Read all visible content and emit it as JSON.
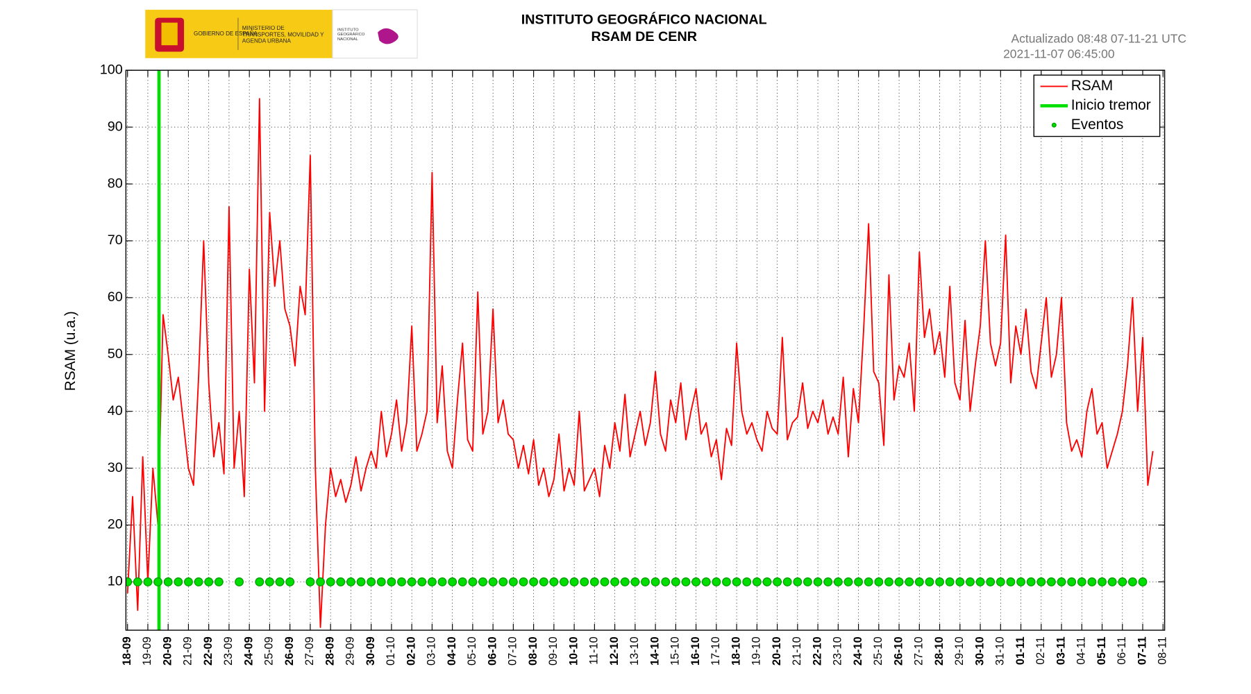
{
  "logo": {
    "gobierno": "GOBIERNO DE ESPAÑA",
    "ministerio": "MINISTERIO DE TRANSPORTES, MOVILIDAD Y AGENDA URBANA",
    "instituto": "INSTITUTO GEOGRÁFICO NACIONAL"
  },
  "chart_data": {
    "type": "line",
    "title": "INSTITUTO GEOGRÁFICO NACIONAL",
    "subtitle": "RSAM DE CENR",
    "updated": "Actualizado 08:48 07-11-21 UTC",
    "timestamp": "2021-11-07 06:45:00",
    "y_label": "RSAM (u.a.)",
    "xlim": [
      -0.08,
      51.08
    ],
    "ylim": [
      1.5,
      100
    ],
    "yticks": [
      10,
      20,
      30,
      40,
      50,
      60,
      70,
      80,
      90,
      100
    ],
    "xticks": [
      {
        "value": 0,
        "label": "18-09"
      },
      {
        "value": 1,
        "label": "19-09"
      },
      {
        "value": 2,
        "label": "20-09"
      },
      {
        "value": 3,
        "label": "21-09"
      },
      {
        "value": 4,
        "label": "22-09"
      },
      {
        "value": 5,
        "label": "23-09"
      },
      {
        "value": 6,
        "label": "24-09"
      },
      {
        "value": 7,
        "label": "25-09"
      },
      {
        "value": 8,
        "label": "26-09"
      },
      {
        "value": 9,
        "label": "27-09"
      },
      {
        "value": 10,
        "label": "28-09"
      },
      {
        "value": 11,
        "label": "29-09"
      },
      {
        "value": 12,
        "label": "30-09"
      },
      {
        "value": 13,
        "label": "01-10"
      },
      {
        "value": 14,
        "label": "02-10"
      },
      {
        "value": 15,
        "label": "03-10"
      },
      {
        "value": 16,
        "label": "04-10"
      },
      {
        "value": 17,
        "label": "05-10"
      },
      {
        "value": 18,
        "label": "06-10"
      },
      {
        "value": 19,
        "label": "07-10"
      },
      {
        "value": 20,
        "label": "08-10"
      },
      {
        "value": 21,
        "label": "09-10"
      },
      {
        "value": 22,
        "label": "10-10"
      },
      {
        "value": 23,
        "label": "11-10"
      },
      {
        "value": 24,
        "label": "12-10"
      },
      {
        "value": 25,
        "label": "13-10"
      },
      {
        "value": 26,
        "label": "14-10"
      },
      {
        "value": 27,
        "label": "15-10"
      },
      {
        "value": 28,
        "label": "16-10"
      },
      {
        "value": 29,
        "label": "17-10"
      },
      {
        "value": 30,
        "label": "18-10"
      },
      {
        "value": 31,
        "label": "19-10"
      },
      {
        "value": 32,
        "label": "20-10"
      },
      {
        "value": 33,
        "label": "21-10"
      },
      {
        "value": 34,
        "label": "22-10"
      },
      {
        "value": 35,
        "label": "23-10"
      },
      {
        "value": 36,
        "label": "24-10"
      },
      {
        "value": 37,
        "label": "25-10"
      },
      {
        "value": 38,
        "label": "26-10"
      },
      {
        "value": 39,
        "label": "27-10"
      },
      {
        "value": 40,
        "label": "28-10"
      },
      {
        "value": 41,
        "label": "29-10"
      },
      {
        "value": 42,
        "label": "30-10"
      },
      {
        "value": 43,
        "label": "31-10"
      },
      {
        "value": 44,
        "label": "01-11"
      },
      {
        "value": 45,
        "label": "02-11"
      },
      {
        "value": 46,
        "label": "03-11"
      },
      {
        "value": 47,
        "label": "04-11"
      },
      {
        "value": 48,
        "label": "05-11"
      },
      {
        "value": 49,
        "label": "06-11"
      },
      {
        "value": 50,
        "label": "07-11"
      },
      {
        "value": 51,
        "label": "08-11"
      }
    ],
    "grid": true,
    "legend": "upper right",
    "series": [
      {
        "name": "RSAM",
        "type": "line",
        "color": "#ff0000",
        "x": [
          0,
          0.25,
          0.5,
          0.75,
          1,
          1.25,
          1.5,
          1.75,
          2,
          2.25,
          2.5,
          2.75,
          3,
          3.25,
          3.5,
          3.75,
          4,
          4.25,
          4.5,
          4.75,
          5,
          5.25,
          5.5,
          5.75,
          6,
          6.25,
          6.5,
          6.75,
          7,
          7.25,
          7.5,
          7.75,
          8,
          8.25,
          8.5,
          8.75,
          9,
          9.25,
          9.5,
          9.75,
          10,
          10.25,
          10.5,
          10.75,
          11,
          11.25,
          11.5,
          11.75,
          12,
          12.25,
          12.5,
          12.75,
          13,
          13.25,
          13.5,
          13.75,
          14,
          14.25,
          14.5,
          14.75,
          15,
          15.25,
          15.5,
          15.75,
          16,
          16.25,
          16.5,
          16.75,
          17,
          17.25,
          17.5,
          17.75,
          18,
          18.25,
          18.5,
          18.75,
          19,
          19.25,
          19.5,
          19.75,
          20,
          20.25,
          20.5,
          20.75,
          21,
          21.25,
          21.5,
          21.75,
          22,
          22.25,
          22.5,
          22.75,
          23,
          23.25,
          23.5,
          23.75,
          24,
          24.25,
          24.5,
          24.75,
          25,
          25.25,
          25.5,
          25.75,
          26,
          26.25,
          26.5,
          26.75,
          27,
          27.25,
          27.5,
          27.75,
          28,
          28.25,
          28.5,
          28.75,
          29,
          29.25,
          29.5,
          29.75,
          30,
          30.25,
          30.5,
          30.75,
          31,
          31.25,
          31.5,
          31.75,
          32,
          32.25,
          32.5,
          32.75,
          33,
          33.25,
          33.5,
          33.75,
          34,
          34.25,
          34.5,
          34.75,
          35,
          35.25,
          35.5,
          35.75,
          36,
          36.25,
          36.5,
          36.75,
          37,
          37.25,
          37.5,
          37.75,
          38,
          38.25,
          38.5,
          38.75,
          39,
          39.25,
          39.5,
          39.75,
          40,
          40.25,
          40.5,
          40.75,
          41,
          41.25,
          41.5,
          41.75,
          42,
          42.25,
          42.5,
          42.75,
          43,
          43.25,
          43.5,
          43.75,
          44,
          44.25,
          44.5,
          44.75,
          45,
          45.25,
          45.5,
          45.75,
          46,
          46.25,
          46.5,
          46.75,
          47,
          47.25,
          47.5,
          47.75,
          48,
          48.25,
          48.5,
          48.75,
          49,
          49.25,
          49.5,
          49.75,
          50,
          50.25,
          50.5
        ],
        "values": [
          8,
          25,
          5,
          32,
          10,
          30,
          20,
          57,
          50,
          42,
          46,
          38,
          30,
          27,
          46,
          70,
          45,
          32,
          38,
          29,
          76,
          30,
          40,
          25,
          65,
          45,
          95,
          40,
          75,
          62,
          70,
          58,
          55,
          48,
          62,
          57,
          85,
          30,
          2,
          20,
          30,
          25,
          28,
          24,
          27,
          32,
          26,
          30,
          33,
          30,
          40,
          32,
          36,
          42,
          33,
          38,
          55,
          33,
          36,
          40,
          82,
          38,
          48,
          33,
          30,
          42,
          52,
          35,
          33,
          61,
          36,
          40,
          58,
          38,
          42,
          36,
          35,
          30,
          34,
          29,
          35,
          27,
          30,
          25,
          28,
          36,
          26,
          30,
          27,
          40,
          26,
          28,
          30,
          25,
          34,
          30,
          38,
          33,
          43,
          32,
          36,
          40,
          34,
          38,
          47,
          36,
          33,
          42,
          38,
          45,
          35,
          40,
          44,
          36,
          38,
          32,
          35,
          28,
          37,
          34,
          52,
          40,
          36,
          38,
          35,
          33,
          40,
          37,
          36,
          53,
          35,
          38,
          39,
          45,
          37,
          40,
          38,
          42,
          36,
          39,
          36,
          46,
          32,
          44,
          38,
          54,
          73,
          47,
          45,
          34,
          64,
          42,
          48,
          46,
          52,
          40,
          68,
          53,
          58,
          50,
          54,
          46,
          62,
          45,
          42,
          56,
          40,
          48,
          55,
          70,
          52,
          48,
          52,
          71,
          45,
          55,
          50,
          58,
          47,
          44,
          52,
          60,
          46,
          50,
          60,
          38,
          33,
          35,
          32,
          40,
          44,
          36,
          38,
          30,
          33,
          36,
          40,
          48,
          60,
          40,
          53,
          27,
          33
        ]
      },
      {
        "name": "Inicio tremor",
        "type": "vline",
        "color": "#00e000",
        "x": [
          1.55
        ]
      },
      {
        "name": "Eventos",
        "type": "scatter",
        "color": "#00dd00",
        "x": [
          0,
          0.5,
          1,
          1.5,
          2,
          2.5,
          3,
          3.5,
          4,
          4.5,
          5.5,
          6.5,
          7,
          7.5,
          8,
          9,
          9.5,
          10,
          10.5,
          11,
          11.5,
          12,
          12.5,
          13,
          13.5,
          14,
          14.5,
          15,
          15.5,
          16,
          16.5,
          17,
          17.5,
          18,
          18.5,
          19,
          19.5,
          20,
          20.5,
          21,
          21.5,
          22,
          22.5,
          23,
          23.5,
          24,
          24.5,
          25,
          25.5,
          26,
          26.5,
          27,
          27.5,
          28,
          28.5,
          29,
          29.5,
          30,
          30.5,
          31,
          31.5,
          32,
          32.5,
          33,
          33.5,
          34,
          34.5,
          35,
          35.5,
          36,
          36.5,
          37,
          37.5,
          38,
          38.5,
          39,
          39.5,
          40,
          40.5,
          41,
          41.5,
          42,
          42.5,
          43,
          43.5,
          44,
          44.5,
          45,
          45.5,
          46,
          46.5,
          47,
          47.5,
          48,
          48.5,
          49,
          49.5,
          50
        ],
        "values": [
          10,
          10,
          10,
          10,
          10,
          10,
          10,
          10,
          10,
          10,
          10,
          10,
          10,
          10,
          10,
          10,
          10,
          10,
          10,
          10,
          10,
          10,
          10,
          10,
          10,
          10,
          10,
          10,
          10,
          10,
          10,
          10,
          10,
          10,
          10,
          10,
          10,
          10,
          10,
          10,
          10,
          10,
          10,
          10,
          10,
          10,
          10,
          10,
          10,
          10,
          10,
          10,
          10,
          10,
          10,
          10,
          10,
          10,
          10,
          10,
          10,
          10,
          10,
          10,
          10,
          10,
          10,
          10,
          10,
          10,
          10,
          10,
          10,
          10,
          10,
          10,
          10,
          10,
          10,
          10,
          10,
          10,
          10,
          10,
          10,
          10,
          10,
          10,
          10,
          10,
          10,
          10,
          10,
          10,
          10,
          10,
          10,
          10
        ]
      }
    ]
  }
}
